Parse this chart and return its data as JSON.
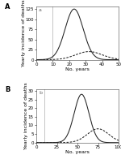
{
  "panel_A": {
    "label": "A",
    "sublabel": "a",
    "xmax": 50,
    "xticks": [
      0,
      10,
      20,
      30,
      40,
      50
    ],
    "solid_peak": 23,
    "solid_sigma": 5.5,
    "solid_amp": 125,
    "dashed_peak": 32,
    "dashed_sigma": 8,
    "dashed_amp": 20,
    "vline_x": 10,
    "ylabel": "Yearly incidence of deaths",
    "xlabel": "No. years",
    "yticks": [
      0,
      25,
      50,
      75,
      100,
      125
    ],
    "ymax": 132
  },
  "panel_B": {
    "label": "B",
    "sublabel": "b",
    "xmax": 100,
    "xticks": [
      0,
      25,
      50,
      75,
      100
    ],
    "solid_peak": 55,
    "solid_sigma": 9,
    "solid_amp": 28,
    "dashed_peak": 75,
    "dashed_sigma": 13,
    "dashed_amp": 8,
    "vline_x": 10,
    "ylabel": "Yearly incidence of deaths",
    "xlabel": "No. years",
    "yticks": [
      0,
      5,
      10,
      15,
      20,
      25,
      30
    ],
    "ymax": 31
  },
  "line_color": "#222222",
  "vline_color": "#bbbbbb",
  "bg_color": "#ffffff",
  "fontsize_label": 4.5,
  "fontsize_tick": 4,
  "fontsize_panel": 6
}
